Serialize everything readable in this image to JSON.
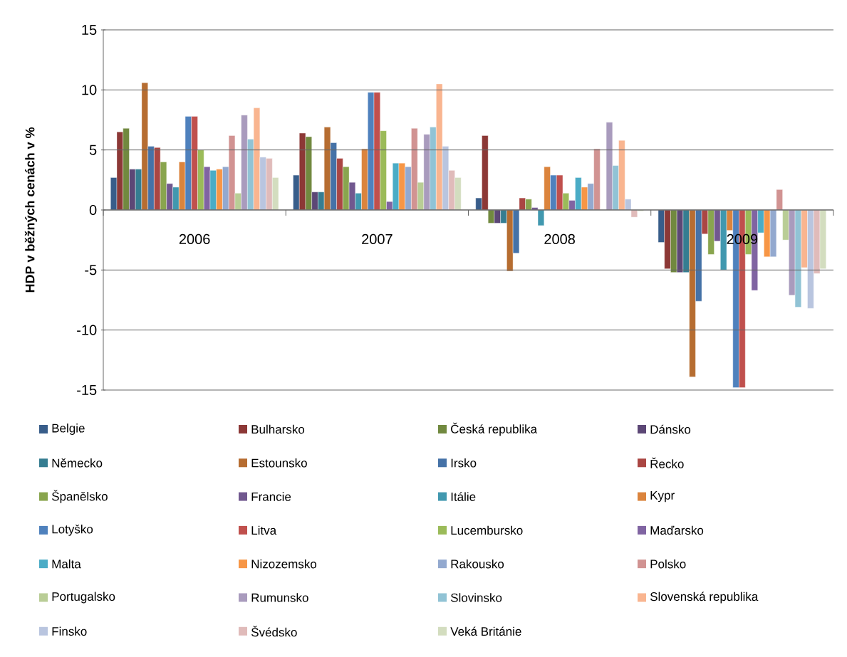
{
  "chart_data": {
    "type": "bar",
    "ylabel": "HDP v běžných cenách v %",
    "categories": [
      "2006",
      "2007",
      "2008",
      "2009"
    ],
    "ylim": [
      -15,
      15
    ],
    "yticks": [
      -15,
      -10,
      -5,
      0,
      5,
      10,
      15
    ],
    "grid": "y",
    "legend": "bottom",
    "series": [
      {
        "name": "Belgie",
        "color": "#385d8a",
        "values": [
          2.7,
          2.9,
          1.0,
          -2.7
        ]
      },
      {
        "name": "Bulharsko",
        "color": "#8c3836",
        "values": [
          6.5,
          6.4,
          6.2,
          -4.9
        ]
      },
      {
        "name": "Česká republika",
        "color": "#71893f",
        "values": [
          6.8,
          6.1,
          -1.1,
          -5.2
        ]
      },
      {
        "name": "Dánsko",
        "color": "#5c4776",
        "values": [
          3.4,
          1.5,
          -1.1,
          -5.2
        ]
      },
      {
        "name": "Německo",
        "color": "#357d91",
        "values": [
          3.4,
          1.5,
          -1.1,
          -5.2
        ]
      },
      {
        "name": "Estounsko",
        "color": "#b66d31",
        "values": [
          10.6,
          6.9,
          -5.1,
          -13.9
        ]
      },
      {
        "name": "Irsko",
        "color": "#4572a7",
        "values": [
          5.3,
          5.6,
          -3.6,
          -7.6
        ]
      },
      {
        "name": "Řecko",
        "color": "#aa4643",
        "values": [
          5.2,
          4.3,
          1.0,
          -2.0
        ]
      },
      {
        "name": "Španělsko",
        "color": "#89a54e",
        "values": [
          4.0,
          3.6,
          0.9,
          -3.7
        ]
      },
      {
        "name": "Francie",
        "color": "#71588f",
        "values": [
          2.2,
          2.3,
          0.2,
          -2.6
        ]
      },
      {
        "name": "Itálie",
        "color": "#4198af",
        "values": [
          1.9,
          1.4,
          -1.3,
          -5.0
        ]
      },
      {
        "name": "Kypr",
        "color": "#db843d",
        "values": [
          4.0,
          5.1,
          3.6,
          -1.7
        ]
      },
      {
        "name": "Lotyško",
        "color": "#4f81bd",
        "values": [
          7.8,
          9.8,
          2.9,
          -14.8
        ]
      },
      {
        "name": "Litva",
        "color": "#c0504d",
        "values": [
          7.8,
          9.8,
          2.9,
          -14.8
        ]
      },
      {
        "name": "Lucembursko",
        "color": "#9bbb59",
        "values": [
          5.0,
          6.6,
          1.4,
          -3.7
        ]
      },
      {
        "name": "Maďarsko",
        "color": "#8064a2",
        "values": [
          3.6,
          0.7,
          0.8,
          -6.7
        ]
      },
      {
        "name": "Malta",
        "color": "#4bacc6",
        "values": [
          3.3,
          3.9,
          2.7,
          -1.9
        ]
      },
      {
        "name": "Nizozemsko",
        "color": "#f79646",
        "values": [
          3.4,
          3.9,
          1.9,
          -3.9
        ]
      },
      {
        "name": "Rakousko",
        "color": "#93a9cf",
        "values": [
          3.6,
          3.6,
          2.2,
          -3.9
        ]
      },
      {
        "name": "Polsko",
        "color": "#d19392",
        "values": [
          6.2,
          6.8,
          5.1,
          1.7
        ]
      },
      {
        "name": "Portugalsko",
        "color": "#b9cd96",
        "values": [
          1.4,
          2.3,
          null,
          -2.5
        ]
      },
      {
        "name": "Rumunsko",
        "color": "#a99bbd",
        "values": [
          7.9,
          6.3,
          7.3,
          -7.1
        ]
      },
      {
        "name": "Slovinsko",
        "color": "#91c3d5",
        "values": [
          5.9,
          6.9,
          3.7,
          -8.1
        ]
      },
      {
        "name": "Slovenská republika",
        "color": "#f9b590",
        "values": [
          8.5,
          10.5,
          5.8,
          -4.8
        ]
      },
      {
        "name": "Finsko",
        "color": "#b9c5df",
        "values": [
          4.4,
          5.3,
          0.9,
          -8.2
        ]
      },
      {
        "name": "Švédsko",
        "color": "#e0bbba",
        "values": [
          4.3,
          3.3,
          -0.6,
          -5.3
        ]
      },
      {
        "name": "Veká Británie",
        "color": "#d3ddbf",
        "values": [
          2.7,
          2.7,
          -0.1,
          -4.9
        ]
      }
    ]
  }
}
